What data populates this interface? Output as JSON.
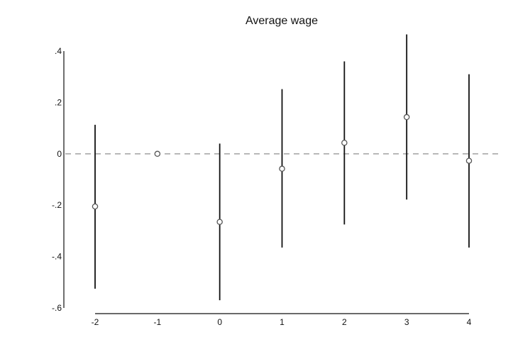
{
  "chart_data": {
    "type": "scatter",
    "title": "Average wage",
    "xlabel": "",
    "ylabel": "",
    "x": [
      -2,
      -1,
      0,
      1,
      2,
      3,
      4
    ],
    "series": [
      {
        "estimate": [
          -0.205,
          0.0,
          -0.265,
          -0.058,
          0.043,
          0.143,
          -0.027
        ],
        "ci_lower": [
          -0.525,
          0.0,
          -0.57,
          -0.365,
          -0.275,
          -0.178,
          -0.365
        ],
        "ci_upper": [
          0.113,
          0.0,
          0.04,
          0.252,
          0.36,
          0.465,
          0.31
        ]
      }
    ],
    "xticks": [
      "-2",
      "-1",
      "0",
      "1",
      "2",
      "3",
      "4"
    ],
    "yticks": [
      ".4",
      ".2",
      "0",
      "-.2",
      "-.4",
      "-.6"
    ],
    "ytick_values": [
      0.4,
      0.2,
      0.0,
      -0.2,
      -0.4,
      -0.6
    ],
    "xlim": [
      -2,
      4
    ],
    "ylim": [
      -0.6,
      0.4
    ],
    "reference_line": {
      "y": 0,
      "style": "dashed",
      "color": "#9a9a9a"
    },
    "colors": {
      "marker": "#555555",
      "ci_line": "#111111",
      "axis": "#111111"
    },
    "grid": false,
    "legend": "none"
  }
}
